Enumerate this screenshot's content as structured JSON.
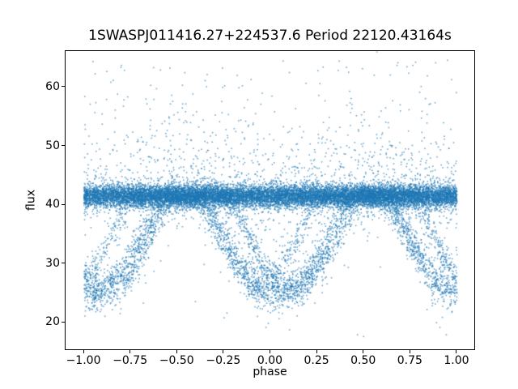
{
  "chart_data": {
    "type": "scatter",
    "title": "1SWASPJ011416.27+224537.6 Period 22120.43164s",
    "xlabel": "phase",
    "ylabel": "flux",
    "xlim": [
      -1.1,
      1.1
    ],
    "ylim": [
      15.2,
      66.2
    ],
    "xticks": [
      -1.0,
      -0.75,
      -0.5,
      -0.25,
      0.0,
      0.25,
      0.5,
      0.75,
      1.0
    ],
    "xtick_labels": [
      "−1.00",
      "−0.75",
      "−0.50",
      "−0.25",
      "0.00",
      "0.25",
      "0.50",
      "0.75",
      "1.00"
    ],
    "yticks": [
      20,
      30,
      40,
      50,
      60
    ],
    "ytick_labels": [
      "20",
      "30",
      "40",
      "50",
      "60"
    ],
    "grid": false,
    "legend": null,
    "marker_color": "#1f77b4",
    "marker_alpha": 0.72,
    "marker_size": 1.5,
    "n_points": 20000,
    "seed": 20120431,
    "model": {
      "description": "Phase-folded eclipsing-binary light curve: dense out-of-eclipse band near flux 41.5 at all phases, plus braided V-shaped eclipse tracks reaching flux ~24.5 centered near phase 0 (repeating each 1.0 in phase, so also at -1 and +1), sparse bright outliers up to ~63 and faint strays down to ~18.",
      "phase_range": [
        -1.0,
        1.0
      ],
      "baseline_flux": 41.5,
      "baseline_sigma": 0.95,
      "upper_tail": {
        "prob": 0.07,
        "scale": 5.5,
        "max": 22
      },
      "lower_tail": {
        "prob": 0.04,
        "scale": 2.0,
        "max": 7
      },
      "outlier_prob": 0.003,
      "outlier_flux_range": [
        17.5,
        63.5
      ],
      "eclipse_prob": 0.3,
      "eclipse_sigma": 1.0,
      "eclipse_shape_exponent": 1.15,
      "eclipse_tracks": [
        {
          "center": 0.02,
          "half_width": 0.42,
          "depth": 17.0,
          "weight": 0.4
        },
        {
          "center": 0.12,
          "half_width": 0.35,
          "depth": 16.2,
          "weight": 0.35
        },
        {
          "center": -0.05,
          "half_width": 0.3,
          "depth": 14.5,
          "weight": 0.25
        }
      ]
    },
    "colors": {
      "background": "#ffffff",
      "frame": "#000000",
      "text": "#000000",
      "points": "#1f77b4"
    }
  }
}
